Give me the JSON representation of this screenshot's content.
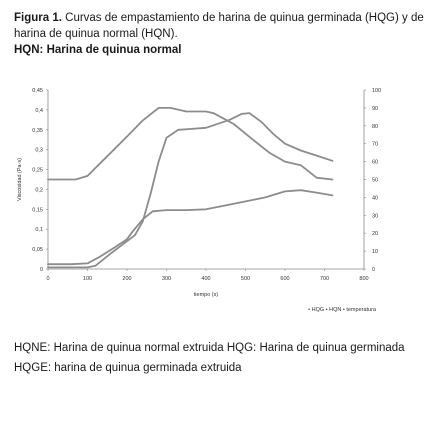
{
  "caption": {
    "label": "Figura 1.",
    "text": " Curvas de empastamiento de harina de quinua germinada (HQG) y de harina de quinua normal (HQN).",
    "subtitle": "HQN: Harina de quinua normal"
  },
  "notes": {
    "line1": "HQNE: Harina de quinua normal extruida HQG: Harina de quinua germinada",
    "line2": "HQGE: harina de quinua germinada extruida"
  },
  "chart_data": {
    "type": "line",
    "xlabel": "tiempo (s)",
    "ylabel": "Viscosidad (Pa·s)",
    "xlim": [
      0,
      800
    ],
    "ylim": [
      0,
      0.45
    ],
    "y2lim": [
      0,
      100
    ],
    "xticks": [
      "0",
      "100",
      "200",
      "300",
      "400",
      "500",
      "600",
      "700",
      "800"
    ],
    "yticks": [
      "0",
      "0,05",
      "0,1",
      "0,15",
      "0,2",
      "0,25",
      "0,3",
      "0,35",
      "0,4",
      "0,45"
    ],
    "y2ticks": [
      "0",
      "10",
      "20",
      "30",
      "40",
      "50",
      "60",
      "70",
      "80",
      "90",
      "100"
    ],
    "legend": {
      "placement": "bottom-right",
      "entries": [
        "HQG",
        "HQN",
        "temperatura"
      ]
    },
    "grid": false,
    "series": [
      {
        "name": "HQG",
        "axis": "left",
        "color": "#8c8c8c",
        "points": [
          [
            0,
            0.012
          ],
          [
            60,
            0.012
          ],
          [
            100,
            0.014
          ],
          [
            130,
            0.03
          ],
          [
            170,
            0.055
          ],
          [
            200,
            0.075
          ],
          [
            215,
            0.095
          ],
          [
            240,
            0.125
          ],
          [
            265,
            0.145
          ],
          [
            300,
            0.148
          ],
          [
            350,
            0.148
          ],
          [
            400,
            0.15
          ],
          [
            450,
            0.16
          ],
          [
            500,
            0.17
          ],
          [
            550,
            0.18
          ],
          [
            600,
            0.195
          ],
          [
            640,
            0.198
          ],
          [
            680,
            0.192
          ],
          [
            720,
            0.185
          ]
        ]
      },
      {
        "name": "HQN",
        "axis": "left",
        "color": "#8c8c8c",
        "points": [
          [
            0,
            0.004
          ],
          [
            100,
            0.004
          ],
          [
            120,
            0.008
          ],
          [
            160,
            0.04
          ],
          [
            200,
            0.07
          ],
          [
            220,
            0.085
          ],
          [
            240,
            0.12
          ],
          [
            260,
            0.19
          ],
          [
            280,
            0.27
          ],
          [
            300,
            0.33
          ],
          [
            330,
            0.35
          ],
          [
            360,
            0.352
          ],
          [
            400,
            0.355
          ],
          [
            430,
            0.365
          ],
          [
            460,
            0.375
          ],
          [
            490,
            0.39
          ],
          [
            510,
            0.392
          ],
          [
            540,
            0.37
          ],
          [
            570,
            0.34
          ],
          [
            600,
            0.315
          ],
          [
            640,
            0.298
          ],
          [
            680,
            0.285
          ],
          [
            720,
            0.272
          ]
        ]
      },
      {
        "name": "temperatura",
        "axis": "right",
        "color": "#8c8c8c",
        "points": [
          [
            0,
            50
          ],
          [
            70,
            50
          ],
          [
            100,
            52
          ],
          [
            150,
            63
          ],
          [
            200,
            74
          ],
          [
            240,
            83
          ],
          [
            280,
            90
          ],
          [
            310,
            90
          ],
          [
            350,
            88
          ],
          [
            400,
            88
          ],
          [
            420,
            87
          ],
          [
            470,
            81
          ],
          [
            520,
            72
          ],
          [
            560,
            65
          ],
          [
            600,
            60
          ],
          [
            640,
            58
          ],
          [
            680,
            51
          ],
          [
            720,
            50
          ]
        ]
      }
    ]
  }
}
